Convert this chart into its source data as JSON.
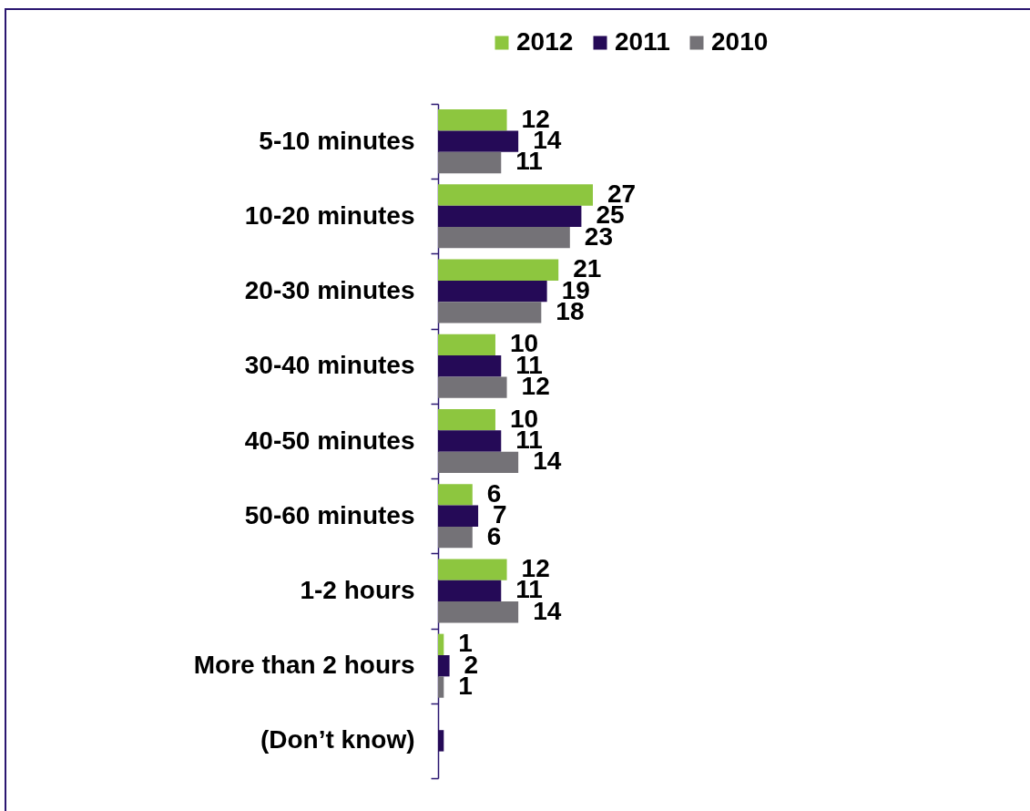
{
  "chart_data": {
    "type": "bar",
    "orientation": "horizontal",
    "legend": "top",
    "categories": [
      "5-10 minutes",
      "10-20 minutes",
      "20-30 minutes",
      "30-40 minutes",
      "40-50 minutes",
      "50-60 minutes",
      "1-2 hours",
      "More than 2 hours",
      "(Don’t know)"
    ],
    "series": [
      {
        "name": "2012",
        "color": "#8dc63f",
        "values": [
          12,
          27,
          21,
          10,
          10,
          6,
          12,
          1,
          null
        ],
        "value_labels": [
          "12",
          "27",
          "21",
          "10",
          "10",
          "6",
          "12",
          "1",
          null
        ]
      },
      {
        "name": "2011",
        "color": "#250a57",
        "values": [
          14,
          25,
          19,
          11,
          11,
          7,
          11,
          2,
          1
        ],
        "value_labels": [
          "14",
          "25",
          "19",
          "11",
          "11",
          "7",
          "11",
          "2",
          null
        ]
      },
      {
        "name": "2010",
        "color": "#747277",
        "values": [
          11,
          23,
          18,
          12,
          14,
          6,
          14,
          1,
          null
        ],
        "value_labels": [
          "11",
          "23",
          "18",
          "12",
          "14",
          "6",
          "14",
          "1",
          null
        ]
      }
    ]
  }
}
